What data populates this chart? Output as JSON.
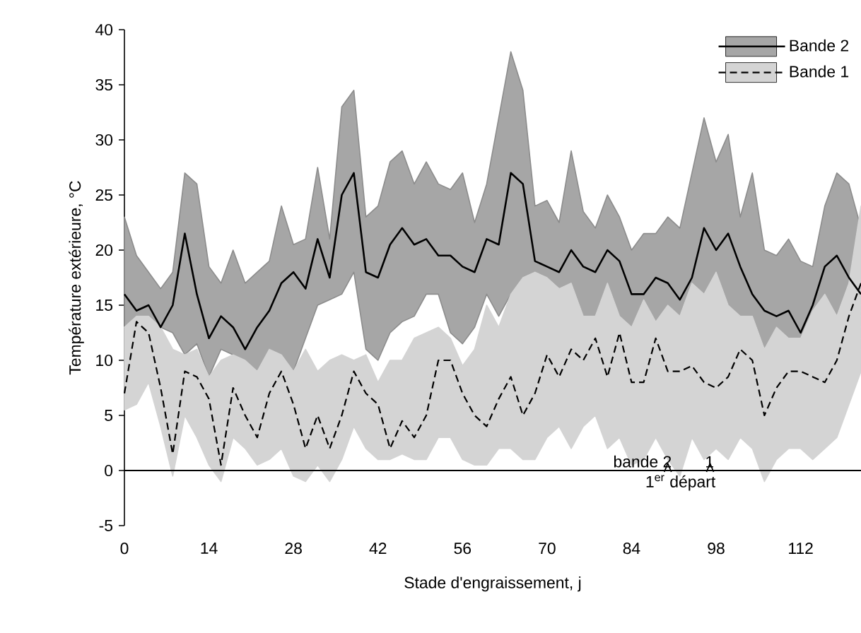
{
  "chart_data": {
    "type": "line",
    "xlabel": "Stade d'engraissement, j",
    "ylabel": "Température extérieure, °C",
    "xlim": [
      0,
      122
    ],
    "xticks": [
      0,
      14,
      28,
      42,
      56,
      70,
      84,
      98,
      112
    ],
    "ylim": [
      -5,
      40
    ],
    "yticks": [
      -5,
      0,
      5,
      10,
      15,
      20,
      25,
      30,
      35,
      40
    ],
    "legend": "top right",
    "ref_lines": [
      {
        "axis": "y",
        "value": 0
      }
    ],
    "annotations": [
      {
        "text": "bande 2",
        "x": 90,
        "y": 0
      },
      {
        "text": "1",
        "x": 97,
        "y": 0
      },
      "1$^{er}$ départ"
    ],
    "series": [
      {
        "name": "Bande 2",
        "color": "#000000",
        "line_style": "solid",
        "x": [
          0,
          2,
          4,
          6,
          8,
          10,
          12,
          14,
          16,
          18,
          20,
          22,
          24,
          26,
          28,
          30,
          32,
          34,
          36,
          38,
          40,
          42,
          44,
          46,
          48,
          50,
          52,
          54,
          56,
          58,
          60,
          62,
          64,
          66,
          68,
          70,
          72,
          74,
          76,
          78,
          80,
          82,
          84,
          86,
          88,
          90,
          92,
          94,
          96,
          98,
          100,
          102,
          104,
          106,
          108,
          110,
          112,
          114,
          116,
          118,
          120,
          122
        ],
        "values": [
          16,
          14.5,
          15,
          13,
          15,
          21.5,
          16,
          12,
          14,
          13,
          11,
          13,
          14.5,
          17,
          18,
          16.5,
          21,
          17.5,
          25,
          27,
          18,
          17.5,
          20.5,
          22,
          20.5,
          21,
          19.5,
          19.5,
          18.5,
          18,
          21,
          20.5,
          27,
          26,
          19,
          18.5,
          18,
          20,
          18.5,
          18,
          20,
          19,
          16,
          16,
          17.5,
          17,
          15.5,
          17.5,
          22,
          20,
          21.5,
          18.5,
          16,
          14.5,
          14,
          14.5,
          12.5,
          15,
          18.5,
          19.5,
          17.5,
          16
        ],
        "upper": [
          23,
          19.5,
          18,
          16.5,
          18,
          27,
          26,
          18.5,
          17,
          20,
          17,
          18,
          19,
          24,
          20.5,
          21,
          27.5,
          21,
          33,
          34.5,
          23,
          24,
          28,
          29,
          26,
          28,
          26,
          25.5,
          27,
          22.5,
          26,
          32,
          38,
          34.5,
          24,
          24.5,
          22.5,
          29,
          23.5,
          22,
          25,
          23,
          20,
          21.5,
          21.5,
          23,
          22,
          27,
          32,
          28,
          30.5,
          23,
          27,
          20,
          19.5,
          21,
          19,
          18.5,
          24,
          27,
          26,
          22
        ],
        "lower": [
          13,
          14,
          14,
          13,
          12.5,
          10.5,
          11.5,
          8.5,
          11,
          10.5,
          10,
          9,
          11,
          10.5,
          9,
          12,
          15,
          15.5,
          16,
          18,
          11,
          10,
          12.5,
          13.5,
          14,
          16,
          16,
          12.5,
          11.5,
          13,
          16,
          14,
          16,
          17.5,
          18,
          17.5,
          16.5,
          17,
          14,
          14,
          17,
          14,
          13,
          15.5,
          13.5,
          15,
          14,
          17,
          16,
          18,
          15,
          14,
          14,
          11,
          13,
          12,
          12,
          14.5,
          16,
          14,
          17,
          16
        ]
      },
      {
        "name": "Bande 1",
        "color": "#000000",
        "line_style": "dashed",
        "x": [
          0,
          2,
          4,
          6,
          8,
          10,
          12,
          14,
          16,
          18,
          20,
          22,
          24,
          26,
          28,
          30,
          32,
          34,
          36,
          38,
          40,
          42,
          44,
          46,
          48,
          50,
          52,
          54,
          56,
          58,
          60,
          62,
          64,
          66,
          68,
          70,
          72,
          74,
          76,
          78,
          80,
          82,
          84,
          86,
          88,
          90,
          92,
          94,
          96,
          98,
          100,
          102,
          104,
          106,
          108,
          110,
          112,
          114,
          116,
          118,
          120,
          122
        ],
        "values": [
          7,
          13.5,
          12.5,
          7.5,
          1.5,
          9,
          8.5,
          6.5,
          0.5,
          7.5,
          5,
          3,
          7,
          9,
          6,
          2,
          5,
          2,
          5,
          9,
          7,
          6,
          2,
          4.5,
          3,
          5,
          10,
          10,
          7,
          5,
          4,
          6.5,
          8.5,
          5,
          7,
          10.5,
          8.5,
          11,
          10,
          12,
          8.5,
          12.5,
          8,
          8,
          12,
          9,
          9,
          9.5,
          8,
          7.5,
          8.5,
          11,
          10,
          5,
          7.5,
          9,
          9,
          8.5,
          8,
          10,
          14,
          17
        ],
        "upper": [
          13,
          14,
          14,
          13,
          11,
          10.5,
          11,
          8.5,
          10,
          10.5,
          10,
          9,
          11,
          10.5,
          9,
          11,
          9,
          10,
          10.5,
          10,
          10.5,
          8,
          10,
          10,
          12,
          12.5,
          13,
          12,
          9.5,
          11,
          15,
          13,
          16,
          17.5,
          18,
          17.5,
          16.5,
          17,
          14,
          14,
          17,
          14,
          13,
          15.5,
          13.5,
          15,
          14,
          17,
          16,
          18,
          15,
          14,
          14,
          11,
          13,
          12,
          12,
          14.5,
          16,
          14,
          17,
          24
        ],
        "lower": [
          5.5,
          6,
          8,
          4,
          -0.5,
          5,
          3,
          0.5,
          -1,
          3,
          2,
          0.5,
          1,
          2,
          -0.5,
          -1,
          0.5,
          -1,
          1,
          4,
          2,
          1,
          1,
          1.5,
          1,
          1,
          3,
          3,
          1,
          0.5,
          0.5,
          2,
          2,
          1,
          1,
          3,
          4,
          2,
          4,
          5,
          2,
          3,
          0.5,
          1,
          3,
          1,
          -0.5,
          3,
          1,
          2,
          1,
          3,
          2,
          -1,
          1,
          2,
          2,
          1,
          2,
          3,
          6,
          9
        ]
      }
    ]
  }
}
